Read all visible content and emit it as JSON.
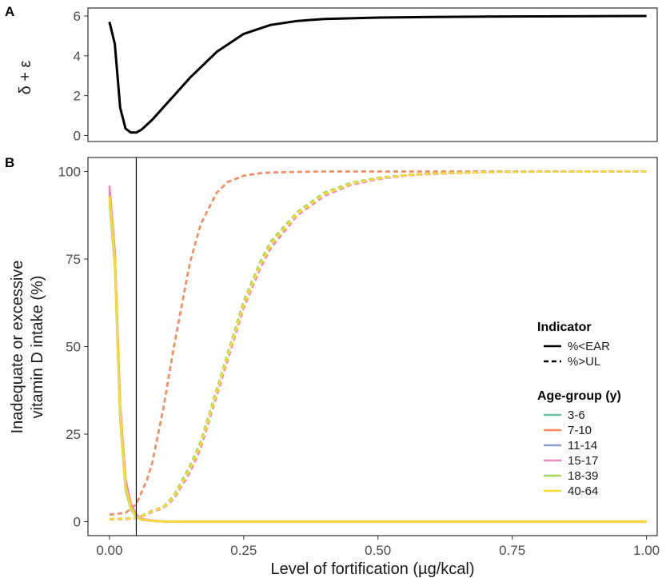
{
  "chart_data": [
    {
      "panel": "A",
      "type": "line",
      "xlabel": "",
      "ylabel": "δ + ε",
      "xlim": [
        -0.04,
        1.02
      ],
      "ylim": [
        -0.3,
        6.4
      ],
      "yticks": [
        "0",
        "2",
        "4",
        "6"
      ],
      "series": [
        {
          "x": [
            0.0,
            0.01,
            0.02,
            0.03,
            0.04,
            0.05,
            0.06,
            0.08,
            0.1,
            0.12,
            0.15,
            0.2,
            0.25,
            0.3,
            0.35,
            0.4,
            0.5,
            0.6,
            0.7,
            0.8,
            0.9,
            1.0
          ],
          "y": [
            5.7,
            4.6,
            1.4,
            0.35,
            0.15,
            0.15,
            0.3,
            0.8,
            1.4,
            2.0,
            2.9,
            4.2,
            5.1,
            5.55,
            5.75,
            5.85,
            5.92,
            5.95,
            5.97,
            5.98,
            5.99,
            6.0
          ]
        }
      ]
    },
    {
      "panel": "B",
      "type": "line",
      "xlabel": "Level of fortification (µg/kcal)",
      "ylabel": "Inadequate or excessive vitamin D intake (%)",
      "xlim": [
        -0.04,
        1.02
      ],
      "ylim": [
        -4,
        104
      ],
      "xticks": [
        "0.00",
        "0.25",
        "0.50",
        "0.75",
        "1.00"
      ],
      "yticks": [
        "0",
        "25",
        "50",
        "75",
        "100"
      ],
      "vline_x": 0.05,
      "ear_x": [
        0.0,
        0.01,
        0.02,
        0.03,
        0.04,
        0.05,
        0.06,
        0.08,
        0.1,
        0.2,
        0.5,
        1.0
      ],
      "ear_series": [
        {
          "group": "3-6",
          "y": [
            92,
            74,
            30,
            10,
            4,
            1.5,
            0.6,
            0.2,
            0.05,
            0,
            0,
            0
          ]
        },
        {
          "group": "7-10",
          "y": [
            94,
            76,
            32,
            11,
            4.5,
            1.8,
            0.7,
            0.25,
            0.05,
            0,
            0,
            0
          ]
        },
        {
          "group": "11-14",
          "y": [
            95,
            77,
            33,
            12,
            5,
            2,
            0.8,
            0.3,
            0.05,
            0,
            0,
            0
          ]
        },
        {
          "group": "15-17",
          "y": [
            96,
            77,
            33,
            12,
            5,
            2,
            0.8,
            0.3,
            0.05,
            0,
            0,
            0
          ]
        },
        {
          "group": "18-39",
          "y": [
            91,
            73,
            29,
            9,
            3.5,
            1.3,
            0.5,
            0.2,
            0.05,
            0,
            0,
            0
          ]
        },
        {
          "group": "40-64",
          "y": [
            93,
            75,
            31,
            10,
            4,
            1.5,
            0.6,
            0.2,
            0.05,
            0,
            0,
            0
          ]
        }
      ],
      "ul_x": [
        0.0,
        0.03,
        0.05,
        0.07,
        0.08,
        0.1,
        0.12,
        0.15,
        0.17,
        0.2,
        0.22,
        0.25,
        0.28,
        0.3,
        0.35,
        0.4,
        0.45,
        0.5,
        0.55,
        0.6,
        0.7,
        0.8,
        0.9,
        1.0
      ],
      "ul_series": [
        {
          "group": "3-6",
          "y": [
            2,
            2.5,
            5,
            12,
            17,
            32,
            50,
            74,
            85,
            94,
            97,
            98.8,
            99.5,
            99.7,
            99.9,
            100,
            100,
            100,
            100,
            100,
            100,
            100,
            100,
            100
          ]
        },
        {
          "group": "7-10",
          "y": [
            2,
            2.5,
            5,
            12,
            17,
            32,
            50,
            74,
            85,
            94,
            97,
            98.8,
            99.5,
            99.7,
            99.9,
            100,
            100,
            100,
            100,
            100,
            100,
            100,
            100,
            100
          ]
        },
        {
          "group": "11-14",
          "y": [
            0.7,
            0.8,
            1,
            2.2,
            3,
            4,
            7,
            15,
            22,
            37,
            47,
            62,
            73,
            79,
            88,
            93.5,
            96.5,
            98,
            98.9,
            99.4,
            99.8,
            99.95,
            100,
            100
          ]
        },
        {
          "group": "15-17",
          "y": [
            0.6,
            0.7,
            0.9,
            2,
            2.8,
            3.8,
            6.5,
            14,
            21,
            36,
            46,
            61,
            72,
            78,
            87.5,
            93,
            96.2,
            97.8,
            98.8,
            99.3,
            99.8,
            99.95,
            100,
            100
          ]
        },
        {
          "group": "18-39",
          "y": [
            0.8,
            0.9,
            1.1,
            2.4,
            3.2,
            4.2,
            7.5,
            16,
            23,
            38,
            48,
            63,
            74,
            80,
            88.5,
            94,
            96.8,
            98.2,
            99,
            99.5,
            99.85,
            99.95,
            100,
            100
          ]
        },
        {
          "group": "40-64",
          "y": [
            0.7,
            0.8,
            1,
            2.2,
            3,
            4,
            7,
            15,
            22,
            37,
            47,
            62,
            73,
            79,
            88,
            93.5,
            96.5,
            98,
            98.9,
            99.4,
            99.8,
            99.95,
            100,
            100
          ]
        }
      ],
      "legend": {
        "indicator_title": "Indicator",
        "indicator_items": [
          {
            "label": "%<EAR",
            "dash": "solid"
          },
          {
            "label": "%>UL",
            "dash": "dashed"
          }
        ],
        "group_title": "Age-group (y)",
        "group_items": [
          {
            "label": "3-6",
            "color": "#66c2a5"
          },
          {
            "label": "7-10",
            "color": "#fc8d62"
          },
          {
            "label": "11-14",
            "color": "#8da0cb"
          },
          {
            "label": "15-17",
            "color": "#e78ac3"
          },
          {
            "label": "18-39",
            "color": "#a6d854"
          },
          {
            "label": "40-64",
            "color": "#ffd92f"
          }
        ]
      }
    }
  ]
}
